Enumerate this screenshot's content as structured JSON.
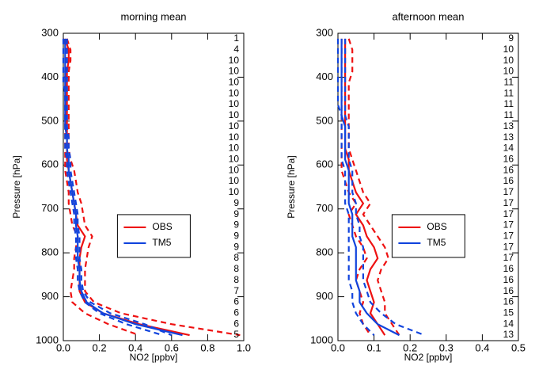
{
  "chart_data": [
    {
      "type": "line",
      "title": "morning mean",
      "xlabel": "NO2 [ppbv]",
      "ylabel": "Pressure [hPa]",
      "xlim": [
        0,
        1
      ],
      "xticks": [
        {
          "value": 0,
          "label": "0.0"
        },
        {
          "value": 0.2,
          "label": "0.2"
        },
        {
          "value": 0.4,
          "label": "0.4"
        },
        {
          "value": 0.6,
          "label": "0.6"
        },
        {
          "value": 0.8,
          "label": "0.8"
        },
        {
          "value": 1,
          "label": "1.0"
        }
      ],
      "ylim": [
        1000,
        300
      ],
      "yticks": [
        300,
        400,
        500,
        600,
        700,
        800,
        900,
        1000
      ],
      "legend": "right",
      "y": [
        312.5,
        337.5,
        362.5,
        387.5,
        412.5,
        437.5,
        462.5,
        487.5,
        512.5,
        537.5,
        562.5,
        587.5,
        612.5,
        637.5,
        662.5,
        687.5,
        712.5,
        737.5,
        762.5,
        787.5,
        812.5,
        837.5,
        862.5,
        887.5,
        912.5,
        937.5,
        962.5,
        987.5
      ],
      "counts": [
        1,
        4,
        10,
        10,
        10,
        10,
        10,
        10,
        10,
        10,
        10,
        10,
        10,
        10,
        10,
        9,
        9,
        9,
        9,
        9,
        8,
        8,
        8,
        7,
        6,
        6,
        6,
        5
      ],
      "series": [
        {
          "name": "OBS",
          "color": "#ee1111",
          "values": [
            0.01,
            0.03,
            0.03,
            0.02,
            0.02,
            0.02,
            0.02,
            0.02,
            0.02,
            0.02,
            0.02,
            0.02,
            0.03,
            0.04,
            0.05,
            0.06,
            0.07,
            0.08,
            0.12,
            0.1,
            0.09,
            0.09,
            0.09,
            0.09,
            0.12,
            0.22,
            0.42,
            0.7
          ]
        },
        {
          "color": "#ee1111",
          "dash": true,
          "values": [
            0.02,
            0.04,
            0.04,
            0.03,
            0.03,
            0.03,
            0.03,
            0.03,
            0.03,
            0.03,
            0.03,
            0.04,
            0.06,
            0.07,
            0.08,
            0.1,
            0.11,
            0.12,
            0.16,
            0.14,
            0.13,
            0.12,
            0.12,
            0.12,
            0.17,
            0.32,
            0.6,
            0.98
          ]
        },
        {
          "color": "#ee1111",
          "dash": true,
          "values": [
            0,
            0.02,
            0.02,
            0.01,
            0.01,
            0.01,
            0.01,
            0.01,
            0.01,
            0.01,
            0.01,
            0.01,
            0.01,
            0.02,
            0.03,
            0.03,
            0.04,
            0.05,
            0.08,
            0.07,
            0.06,
            0.06,
            0.05,
            0.04,
            0.05,
            0.12,
            0.25,
            0.42
          ]
        },
        {
          "name": "TM5",
          "color": "#1144dd",
          "values": [
            0.01,
            0.01,
            0.01,
            0.01,
            0.01,
            0.01,
            0.01,
            0.01,
            0.01,
            0.02,
            0.02,
            0.03,
            0.03,
            0.04,
            0.05,
            0.06,
            0.07,
            0.07,
            0.08,
            0.08,
            0.08,
            0.09,
            0.09,
            0.1,
            0.13,
            0.22,
            0.4,
            0.66
          ]
        },
        {
          "color": "#1144dd",
          "dash": true,
          "values": [
            0.02,
            0.02,
            0.02,
            0.02,
            0.02,
            0.02,
            0.02,
            0.02,
            0.02,
            0.03,
            0.03,
            0.04,
            0.04,
            0.05,
            0.06,
            0.07,
            0.08,
            0.08,
            0.09,
            0.09,
            0.09,
            0.1,
            0.1,
            0.11,
            0.15,
            0.26,
            0.45,
            0.6
          ]
        },
        {
          "color": "#1144dd",
          "dash": true,
          "values": [
            0,
            0,
            0,
            0,
            0,
            0.01,
            0.01,
            0.01,
            0.01,
            0.01,
            0.01,
            0.02,
            0.02,
            0.03,
            0.04,
            0.05,
            0.06,
            0.06,
            0.07,
            0.07,
            0.07,
            0.08,
            0.08,
            0.09,
            0.12,
            0.2,
            0.35,
            0.55
          ]
        }
      ]
    },
    {
      "type": "line",
      "title": "afternoon mean",
      "xlabel": "NO2 [ppbv]",
      "ylabel": "Pressure [hPa]",
      "xlim": [
        0,
        0.5
      ],
      "xticks": [
        {
          "value": 0,
          "label": "0.0"
        },
        0.1,
        0.2,
        0.3,
        0.4,
        0.5
      ],
      "ylim": [
        1000,
        300
      ],
      "yticks": [
        300,
        400,
        500,
        600,
        700,
        800,
        900,
        1000
      ],
      "legend": "right",
      "y": [
        312.5,
        337.5,
        362.5,
        387.5,
        412.5,
        437.5,
        462.5,
        487.5,
        512.5,
        537.5,
        562.5,
        587.5,
        612.5,
        637.5,
        662.5,
        687.5,
        712.5,
        737.5,
        762.5,
        787.5,
        812.5,
        837.5,
        862.5,
        887.5,
        912.5,
        937.5,
        962.5,
        987.5
      ],
      "counts": [
        9,
        10,
        10,
        10,
        11,
        11,
        11,
        11,
        13,
        13,
        14,
        16,
        16,
        16,
        17,
        17,
        17,
        17,
        17,
        17,
        17,
        16,
        16,
        16,
        16,
        15,
        14,
        13
      ],
      "series": [
        {
          "name": "OBS",
          "color": "#ee1111",
          "values": [
            0.02,
            0.02,
            0.02,
            0.02,
            0.02,
            0.02,
            0.02,
            0.02,
            0.02,
            0.02,
            0.02,
            0.03,
            0.03,
            0.04,
            0.05,
            0.07,
            0.05,
            0.07,
            0.08,
            0.1,
            0.11,
            0.09,
            0.08,
            0.09,
            0.1,
            0.09,
            0.11,
            0.13
          ]
        },
        {
          "color": "#ee1111",
          "dash": true,
          "values": [
            0.03,
            0.04,
            0.04,
            0.04,
            0.03,
            0.03,
            0.03,
            0.03,
            0.03,
            0.03,
            0.03,
            0.04,
            0.05,
            0.06,
            0.07,
            0.09,
            0.07,
            0.09,
            0.11,
            0.13,
            0.14,
            0.12,
            0.11,
            0.12,
            0.13,
            0.13,
            0.15,
            0.17
          ]
        },
        {
          "color": "#ee1111",
          "dash": true,
          "values": [
            0.01,
            0.01,
            0.01,
            0.01,
            0.01,
            0.01,
            0.01,
            0.01,
            0.01,
            0.01,
            0.01,
            0.01,
            0.01,
            0.02,
            0.03,
            0.05,
            0.03,
            0.04,
            0.05,
            0.07,
            0.08,
            0.06,
            0.05,
            0.06,
            0.07,
            0.06,
            0.07,
            0.09
          ]
        },
        {
          "name": "TM5",
          "color": "#1144dd",
          "values": [
            0.01,
            0.01,
            0.01,
            0.01,
            0.01,
            0.01,
            0.01,
            0.01,
            0.02,
            0.02,
            0.02,
            0.02,
            0.03,
            0.03,
            0.03,
            0.03,
            0.04,
            0.04,
            0.04,
            0.05,
            0.05,
            0.05,
            0.05,
            0.06,
            0.06,
            0.08,
            0.11,
            0.17
          ]
        },
        {
          "color": "#1144dd",
          "dash": true,
          "values": [
            0.02,
            0.02,
            0.02,
            0.02,
            0.02,
            0.02,
            0.02,
            0.02,
            0.03,
            0.03,
            0.03,
            0.03,
            0.04,
            0.04,
            0.04,
            0.05,
            0.05,
            0.06,
            0.06,
            0.07,
            0.07,
            0.07,
            0.07,
            0.08,
            0.09,
            0.12,
            0.16,
            0.24
          ]
        },
        {
          "color": "#1144dd",
          "dash": true,
          "values": [
            0,
            0,
            0,
            0,
            0,
            0,
            0,
            0.01,
            0.01,
            0.01,
            0.01,
            0.01,
            0.02,
            0.02,
            0.02,
            0.02,
            0.03,
            0.03,
            0.03,
            0.03,
            0.03,
            0.03,
            0.03,
            0.04,
            0.04,
            0.05,
            0.07,
            0.1
          ]
        }
      ]
    }
  ]
}
